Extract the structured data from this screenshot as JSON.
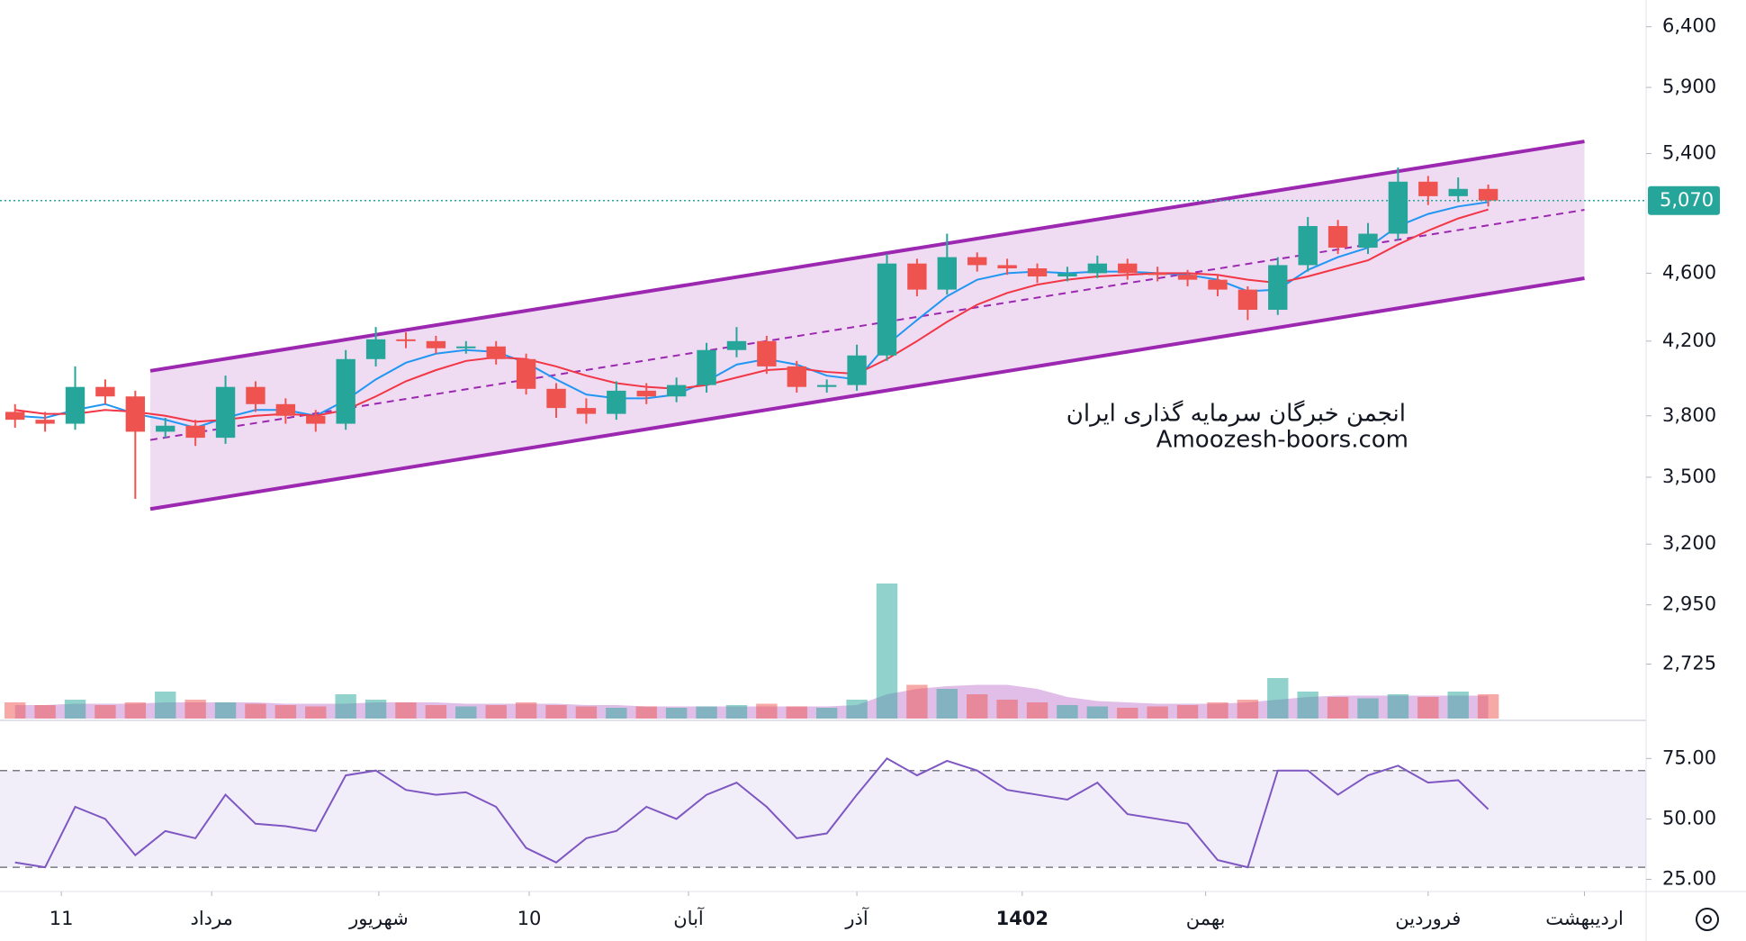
{
  "chart_data": {
    "type": "candlestick",
    "log_scale": true,
    "xlim": [
      -0.5,
      54.25
    ],
    "ylim": [
      2533,
      6633
    ],
    "yticks": [
      {
        "value": 6400,
        "label": "6,400"
      },
      {
        "value": 5900,
        "label": "5,900"
      },
      {
        "value": 5400,
        "label": "5,400"
      },
      {
        "value": 4600,
        "label": "4,600"
      },
      {
        "value": 4200,
        "label": "4,200"
      },
      {
        "value": 3800,
        "label": "3,800"
      },
      {
        "value": 3500,
        "label": "3,500"
      },
      {
        "value": 3200,
        "label": "3,200"
      },
      {
        "value": 2950,
        "label": "2,950"
      },
      {
        "value": 2725,
        "label": "2,725"
      }
    ],
    "xticks": [
      {
        "value": 1.54,
        "label": "11"
      },
      {
        "value": 6.54,
        "label": "مرداد"
      },
      {
        "value": 12.1,
        "label": "شهریور"
      },
      {
        "value": 17.1,
        "label": "10"
      },
      {
        "value": 22.4,
        "label": "آبان"
      },
      {
        "value": 28.0,
        "label": "آذر"
      },
      {
        "value": 33.5,
        "label": "1402"
      },
      {
        "value": 39.6,
        "label": "بهمن"
      },
      {
        "value": 47.0,
        "label": "فروردین"
      },
      {
        "value": 52.2,
        "label": "اردیبهشت"
      }
    ],
    "up_color": "#26a69a",
    "down_color": "#ef5350",
    "open": [
      3820,
      3780,
      3760,
      3950,
      3900,
      3720,
      3750,
      3690,
      3950,
      3860,
      3800,
      3760,
      4100,
      4210,
      4200,
      4160,
      4170,
      4100,
      3940,
      3840,
      3810,
      3930,
      3900,
      3960,
      4150,
      4200,
      4060,
      3950,
      3960,
      4120,
      4660,
      4500,
      4700,
      4650,
      4630,
      4580,
      4600,
      4660,
      4600,
      4590,
      4560,
      4500,
      4380,
      4650,
      4900,
      4760,
      4850,
      5200,
      5100,
      5150
    ],
    "high": [
      3860,
      3820,
      4060,
      3990,
      3930,
      3790,
      3780,
      4010,
      3980,
      3890,
      3830,
      4150,
      4280,
      4250,
      4230,
      4200,
      4200,
      4130,
      3970,
      3890,
      3980,
      3970,
      4000,
      4190,
      4280,
      4230,
      4090,
      3990,
      4180,
      4720,
      4690,
      4850,
      4730,
      4690,
      4660,
      4640,
      4710,
      4690,
      4640,
      4620,
      4590,
      4520,
      4700,
      4960,
      4940,
      4920,
      5300,
      5240,
      5230,
      5180
    ],
    "low": [
      3740,
      3720,
      3730,
      3860,
      3400,
      3690,
      3650,
      3660,
      3820,
      3760,
      3720,
      3730,
      4060,
      4160,
      4130,
      4130,
      4070,
      3910,
      3790,
      3760,
      3780,
      3860,
      3870,
      3920,
      4110,
      4020,
      3920,
      3920,
      3930,
      4090,
      4460,
      4470,
      4610,
      4590,
      4540,
      4550,
      4570,
      4560,
      4550,
      4520,
      4460,
      4320,
      4350,
      4610,
      4720,
      4720,
      4810,
      5040,
      5060,
      5030
    ],
    "close": [
      3780,
      3760,
      3950,
      3900,
      3720,
      3750,
      3690,
      3950,
      3860,
      3800,
      3760,
      4100,
      4210,
      4200,
      4160,
      4170,
      4100,
      3940,
      3840,
      3810,
      3930,
      3900,
      3960,
      4150,
      4200,
      4060,
      3950,
      3960,
      4120,
      4660,
      4500,
      4700,
      4650,
      4630,
      4580,
      4600,
      4660,
      4600,
      4590,
      4560,
      4500,
      4380,
      4650,
      4900,
      4760,
      4850,
      5200,
      5100,
      5150,
      5070
    ],
    "lines": [
      {
        "color": "#2196f3",
        "values": [
          3800,
          3790,
          3830,
          3860,
          3810,
          3780,
          3740,
          3790,
          3830,
          3830,
          3800,
          3880,
          3990,
          4080,
          4130,
          4150,
          4140,
          4080,
          3990,
          3910,
          3890,
          3890,
          3910,
          3980,
          4070,
          4100,
          4070,
          4010,
          3990,
          4180,
          4320,
          4460,
          4560,
          4600,
          4610,
          4600,
          4610,
          4610,
          4600,
          4590,
          4560,
          4490,
          4500,
          4620,
          4700,
          4760,
          4900,
          4980,
          5030,
          5060
        ]
      },
      {
        "color": "#f23645",
        "values": [
          3830,
          3810,
          3810,
          3830,
          3820,
          3800,
          3770,
          3780,
          3800,
          3810,
          3800,
          3830,
          3900,
          3980,
          4040,
          4090,
          4110,
          4100,
          4060,
          4010,
          3970,
          3950,
          3940,
          3960,
          4000,
          4040,
          4050,
          4030,
          4020,
          4100,
          4200,
          4310,
          4410,
          4480,
          4530,
          4560,
          4580,
          4590,
          4600,
          4600,
          4590,
          4560,
          4540,
          4580,
          4630,
          4680,
          4780,
          4870,
          4950,
          5010
        ]
      }
    ],
    "channel": {
      "start": 4.5,
      "end": 52.2,
      "upper": [
        4036,
        5488
      ],
      "lower": [
        3354,
        4569
      ],
      "color": "#9c27b0"
    },
    "last_price": {
      "value": 5070,
      "label": "5,070"
    },
    "volume": [
      12,
      10,
      14,
      10,
      12,
      20,
      14,
      12,
      11,
      10,
      9,
      18,
      14,
      12,
      10,
      9,
      10,
      12,
      10,
      9,
      8,
      9,
      8,
      9,
      10,
      11,
      9,
      8,
      14,
      100,
      25,
      22,
      18,
      14,
      12,
      10,
      9,
      8,
      9,
      10,
      12,
      14,
      30,
      20,
      16,
      15,
      18,
      16,
      20,
      18
    ],
    "volume_ma": [
      10,
      10,
      11,
      11,
      11,
      12,
      12,
      12,
      12,
      11,
      11,
      11,
      12,
      12,
      12,
      11,
      11,
      11,
      11,
      10,
      10,
      9,
      9,
      9,
      9,
      9,
      9,
      9,
      10,
      18,
      22,
      24,
      25,
      25,
      22,
      16,
      13,
      12,
      11,
      11,
      11,
      12,
      14,
      16,
      17,
      17,
      17,
      17,
      17,
      17
    ],
    "volume_lim": [
      0,
      100
    ],
    "rsi": {
      "color": "#7e57c2",
      "values": [
        32,
        30,
        55,
        50,
        35,
        45,
        42,
        60,
        48,
        47,
        45,
        68,
        70,
        62,
        60,
        61,
        55,
        38,
        32,
        42,
        45,
        55,
        50,
        60,
        65,
        55,
        42,
        44,
        60,
        75,
        68,
        74,
        70,
        62,
        60,
        58,
        65,
        52,
        50,
        48,
        33,
        30,
        70,
        70,
        60,
        68,
        72,
        65,
        66,
        54
      ],
      "ylim": [
        20,
        90
      ],
      "band": [
        30,
        70
      ],
      "yticks": [
        {
          "value": 75,
          "label": "75.00"
        },
        {
          "value": 50,
          "label": "50.00"
        },
        {
          "value": 25,
          "label": "25.00"
        }
      ]
    },
    "watermark": [
      "انجمن خبرگان سرمایه گذاری ایران",
      "Amoozesh-boors.com"
    ]
  }
}
